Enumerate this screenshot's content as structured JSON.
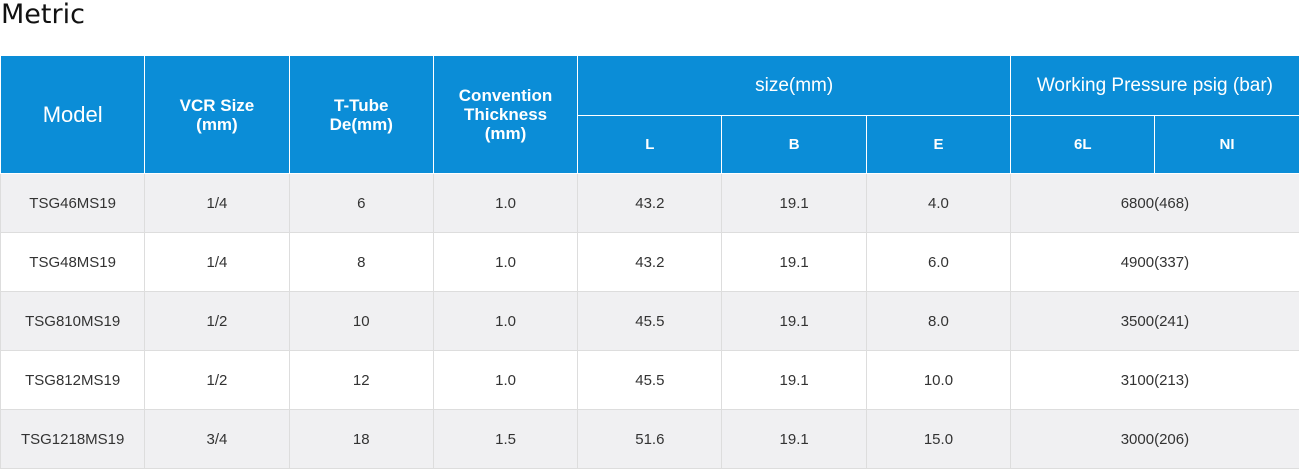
{
  "title": "Metric",
  "table": {
    "columns": [
      "Model",
      "VCR Size\n(mm)",
      "T-Tube\nDe(mm)",
      "Convention\nThickness\n(mm)"
    ],
    "size_group": "size(mm)",
    "size_columns": [
      "L",
      "B",
      "E"
    ],
    "pressure_group": "Working Pressure psig (bar)",
    "pressure_columns": [
      "6L",
      "NI"
    ],
    "rows": [
      [
        "TSG46MS19",
        "1/4",
        "6",
        "1.0",
        "43.2",
        "19.1",
        "4.0",
        "6800(468)"
      ],
      [
        "TSG48MS19",
        "1/4",
        "8",
        "1.0",
        "43.2",
        "19.1",
        "6.0",
        "4900(337)"
      ],
      [
        "TSG810MS19",
        "1/2",
        "10",
        "1.0",
        "45.5",
        "19.1",
        "8.0",
        "3500(241)"
      ],
      [
        "TSG812MS19",
        "1/2",
        "12",
        "1.0",
        "45.5",
        "19.1",
        "10.0",
        "3100(213)"
      ],
      [
        "TSG1218MS19",
        "3/4",
        "18",
        "1.5",
        "51.6",
        "19.1",
        "15.0",
        "3000(206)"
      ]
    ]
  }
}
